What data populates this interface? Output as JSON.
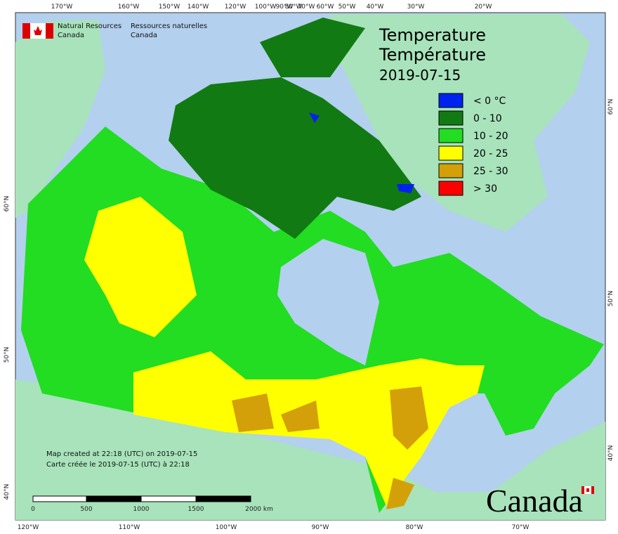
{
  "header": {
    "agency_en": [
      "Natural Resources",
      "Canada"
    ],
    "agency_fr": [
      "Ressources naturelles",
      "Canada"
    ]
  },
  "title": [
    "Temperature",
    "Température",
    "2019-07-15"
  ],
  "legend": [
    {
      "label": "< 0 °C",
      "color": "#0022ee"
    },
    {
      "label": "0 - 10",
      "color": "#127a12"
    },
    {
      "label": "10 - 20",
      "color": "#22dd22"
    },
    {
      "label": "20 - 25",
      "color": "#ffff00"
    },
    {
      "label": "25 - 30",
      "color": "#d4a00a"
    },
    {
      "label": "> 30",
      "color": "#ff0000"
    }
  ],
  "axes": {
    "top": [
      "170°W",
      "160°W",
      "150°W",
      "140°W",
      "120°W",
      "100°W",
      "90°W",
      "80°W",
      "70°W",
      "60°W",
      "50°W",
      "40°W",
      "30°W",
      "20°W"
    ],
    "bottom": [
      "120°W",
      "110°W",
      "100°W",
      "90°W",
      "80°W",
      "70°W"
    ],
    "left": [
      "60°N",
      "50°N",
      "40°N"
    ],
    "right": [
      "60°N",
      "50°N",
      "40°N"
    ]
  },
  "footer": {
    "created_en": "Map created at 22:18 (UTC) on 2019-07-15",
    "created_fr": "Carte créée le 2019-07-15 (UTC) à 22:18"
  },
  "scale_bar": [
    "0",
    "500",
    "1000",
    "1500",
    "2000 km"
  ],
  "wordmark": "Canada"
}
